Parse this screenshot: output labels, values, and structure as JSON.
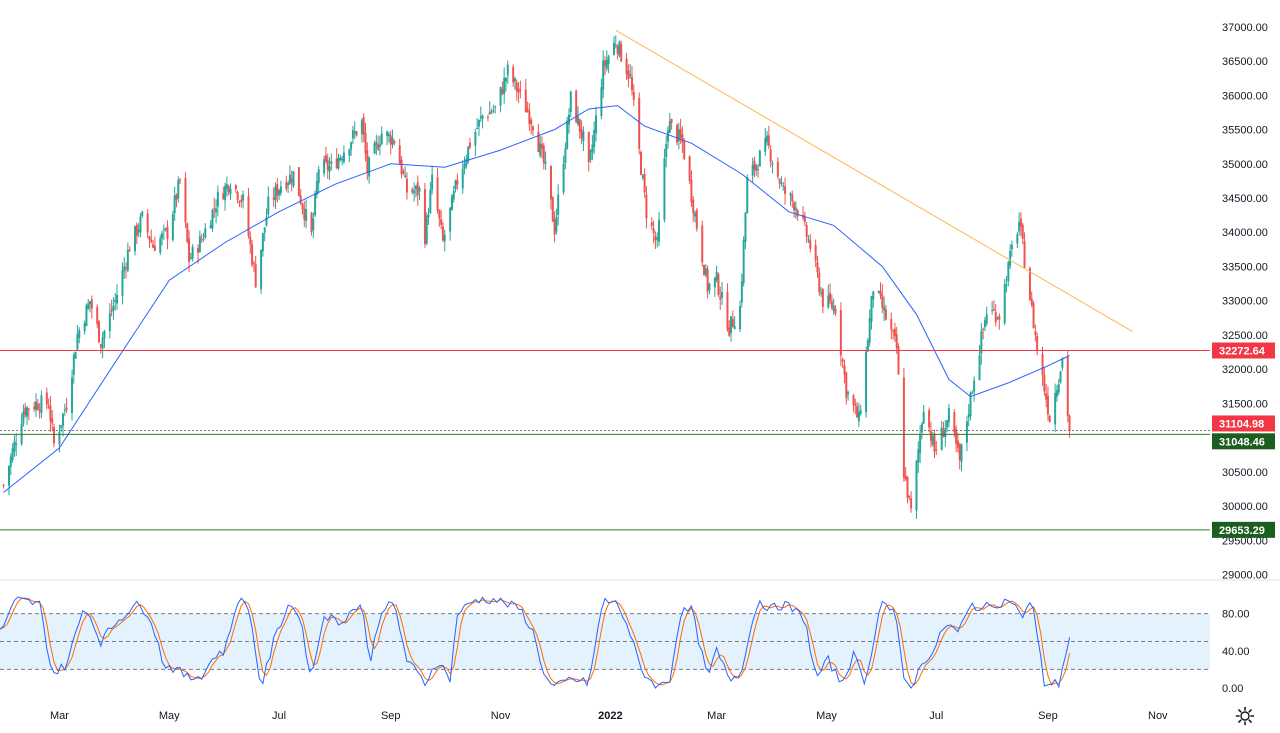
{
  "chart_data": [
    {
      "type": "candlestick",
      "price_axis": {
        "ticks": [
          "29000.00",
          "29500.00",
          "30000.00",
          "30500.00",
          "31000.00",
          "31500.00",
          "32000.00",
          "32500.00",
          "33000.00",
          "33500.00",
          "34000.00",
          "34500.00",
          "35000.00",
          "35500.00",
          "36000.00",
          "36500.00",
          "37000.00"
        ],
        "range": [
          28950,
          37100
        ]
      },
      "time_axis": {
        "labels": [
          "Mar",
          "May",
          "Jul",
          "Sep",
          "Nov",
          "2022",
          "Mar",
          "May",
          "Jul",
          "Sep",
          "Nov"
        ],
        "label_values": [
          "2021-03",
          "2021-05",
          "2021-07",
          "2021-09",
          "2021-11",
          "2022-01",
          "2022-03",
          "2022-05",
          "2022-07",
          "2022-09",
          "2022-11"
        ],
        "range": [
          "2021-01-27",
          "2022-11-30"
        ]
      },
      "anchors": [
        [
          "2021-01-29",
          30300
        ],
        [
          "2021-02-03",
          30800
        ],
        [
          "2021-02-09",
          31400
        ],
        [
          "2021-02-16",
          31500
        ],
        [
          "2021-02-23",
          31500
        ],
        [
          "2021-02-26",
          30900
        ],
        [
          "2021-03-05",
          31500
        ],
        [
          "2021-03-11",
          32500
        ],
        [
          "2021-03-18",
          33000
        ],
        [
          "2021-03-24",
          32400
        ],
        [
          "2021-04-01",
          33000
        ],
        [
          "2021-04-09",
          33800
        ],
        [
          "2021-04-16",
          34200
        ],
        [
          "2021-04-22",
          33800
        ],
        [
          "2021-04-30",
          34000
        ],
        [
          "2021-05-07",
          34750
        ],
        [
          "2021-05-12",
          33600
        ],
        [
          "2021-05-19",
          33900
        ],
        [
          "2021-05-28",
          34500
        ],
        [
          "2021-06-04",
          34750
        ],
        [
          "2021-06-11",
          34450
        ],
        [
          "2021-06-18",
          33300
        ],
        [
          "2021-06-25",
          34400
        ],
        [
          "2021-07-02",
          34700
        ],
        [
          "2021-07-09",
          34850
        ],
        [
          "2021-07-19",
          33950
        ],
        [
          "2021-07-23",
          34950
        ],
        [
          "2021-07-30",
          34950
        ],
        [
          "2021-08-06",
          35200
        ],
        [
          "2021-08-16",
          35600
        ],
        [
          "2021-08-19",
          34900
        ],
        [
          "2021-08-27",
          35450
        ],
        [
          "2021-09-03",
          35350
        ],
        [
          "2021-09-10",
          34600
        ],
        [
          "2021-09-17",
          34600
        ],
        [
          "2021-09-20",
          33950
        ],
        [
          "2021-09-24",
          34750
        ],
        [
          "2021-09-30",
          33850
        ],
        [
          "2021-10-08",
          34750
        ],
        [
          "2021-10-15",
          35300
        ],
        [
          "2021-10-22",
          35700
        ],
        [
          "2021-10-29",
          35800
        ],
        [
          "2021-11-05",
          36350
        ],
        [
          "2021-11-10",
          36100
        ],
        [
          "2021-11-19",
          35600
        ],
        [
          "2021-11-26",
          34900
        ],
        [
          "2021-12-01",
          34050
        ],
        [
          "2021-12-10",
          35950
        ],
        [
          "2021-12-17",
          35350
        ],
        [
          "2021-12-20",
          34900
        ],
        [
          "2021-12-28",
          36400
        ],
        [
          "2022-01-04",
          36800
        ],
        [
          "2022-01-12",
          36250
        ],
        [
          "2022-01-21",
          34300
        ],
        [
          "2022-01-27",
          33800
        ],
        [
          "2022-02-02",
          35600
        ],
        [
          "2022-02-10",
          35300
        ],
        [
          "2022-02-18",
          34100
        ],
        [
          "2022-02-24",
          33200
        ],
        [
          "2022-03-01",
          33300
        ],
        [
          "2022-03-08",
          32600
        ],
        [
          "2022-03-14",
          32900
        ],
        [
          "2022-03-18",
          34750
        ],
        [
          "2022-03-29",
          35300
        ],
        [
          "2022-04-07",
          34600
        ],
        [
          "2022-04-14",
          34400
        ],
        [
          "2022-04-22",
          33800
        ],
        [
          "2022-04-29",
          33000
        ],
        [
          "2022-05-06",
          32900
        ],
        [
          "2022-05-12",
          31700
        ],
        [
          "2022-05-19",
          31250
        ],
        [
          "2022-05-27",
          33200
        ],
        [
          "2022-06-01",
          32900
        ],
        [
          "2022-06-09",
          32300
        ],
        [
          "2022-06-13",
          30500
        ],
        [
          "2022-06-17",
          29900
        ],
        [
          "2022-06-24",
          31500
        ],
        [
          "2022-06-30",
          30800
        ],
        [
          "2022-07-08",
          31300
        ],
        [
          "2022-07-14",
          30650
        ],
        [
          "2022-07-22",
          31900
        ],
        [
          "2022-07-29",
          32850
        ],
        [
          "2022-08-05",
          32800
        ],
        [
          "2022-08-12",
          33750
        ],
        [
          "2022-08-16",
          34150
        ],
        [
          "2022-08-22",
          33050
        ],
        [
          "2022-08-26",
          32300
        ],
        [
          "2022-09-02",
          31300
        ],
        [
          "2022-09-09",
          32150
        ],
        [
          "2022-09-13",
          31100
        ]
      ],
      "moving_average": [
        [
          "2021-01-29",
          30200
        ],
        [
          "2021-03-01",
          30850
        ],
        [
          "2021-04-01",
          32100
        ],
        [
          "2021-05-01",
          33300
        ],
        [
          "2021-06-01",
          33850
        ],
        [
          "2021-07-01",
          34300
        ],
        [
          "2021-08-01",
          34700
        ],
        [
          "2021-09-01",
          35000
        ],
        [
          "2021-10-01",
          34950
        ],
        [
          "2021-11-01",
          35200
        ],
        [
          "2021-12-01",
          35500
        ],
        [
          "2021-12-20",
          35800
        ],
        [
          "2022-01-05",
          35850
        ],
        [
          "2022-01-20",
          35550
        ],
        [
          "2022-02-15",
          35300
        ],
        [
          "2022-03-15",
          34850
        ],
        [
          "2022-04-10",
          34300
        ],
        [
          "2022-05-05",
          34100
        ],
        [
          "2022-06-01",
          33500
        ],
        [
          "2022-06-20",
          32800
        ],
        [
          "2022-07-08",
          31850
        ],
        [
          "2022-07-20",
          31600
        ],
        [
          "2022-08-10",
          31800
        ],
        [
          "2022-09-01",
          32050
        ],
        [
          "2022-09-13",
          32200
        ]
      ],
      "trendline": [
        [
          "2022-01-04",
          36950
        ],
        [
          "2022-10-18",
          32550
        ]
      ],
      "horizontal_levels": [
        {
          "value": 32272.64,
          "label": "32272.64",
          "style": "solid",
          "color": "#f23645",
          "label_color": "#f23645"
        },
        {
          "value": 31104.98,
          "label": "31104.98",
          "style": "dotted",
          "color": "#787b86",
          "label_color": "#f23645"
        },
        {
          "value": 31048.46,
          "label": "31048.46",
          "style": "solid",
          "color": "#2e7d32",
          "label_color": "#1b5e20"
        },
        {
          "value": 29653.29,
          "label": "29653.29",
          "style": "solid",
          "color": "#2e7d32",
          "label_color": "#1b5e20"
        }
      ],
      "colors": {
        "up": "#26a69a",
        "down": "#ef5350",
        "ma": "#2962ff",
        "trend": "#ffb74d"
      }
    },
    {
      "type": "line",
      "indicator": "stochastic",
      "y_axis": {
        "ticks": [
          "0.00",
          "40.00",
          "80.00"
        ],
        "range": [
          0,
          100
        ],
        "band": [
          20,
          80
        ]
      },
      "k_anchors": [
        [
          "2021-01-27",
          60
        ],
        [
          "2021-02-05",
          95
        ],
        [
          "2021-02-18",
          90
        ],
        [
          "2021-02-25",
          15
        ],
        [
          "2021-03-05",
          25
        ],
        [
          "2021-03-15",
          90
        ],
        [
          "2021-03-24",
          50
        ],
        [
          "2021-04-01",
          70
        ],
        [
          "2021-04-12",
          90
        ],
        [
          "2021-04-20",
          80
        ],
        [
          "2021-04-28",
          25
        ],
        [
          "2021-05-05",
          20
        ],
        [
          "2021-05-12",
          10
        ],
        [
          "2021-05-20",
          15
        ],
        [
          "2021-05-26",
          35
        ],
        [
          "2021-06-01",
          40
        ],
        [
          "2021-06-08",
          95
        ],
        [
          "2021-06-14",
          88
        ],
        [
          "2021-06-21",
          0
        ],
        [
          "2021-06-28",
          50
        ],
        [
          "2021-07-06",
          90
        ],
        [
          "2021-07-12",
          80
        ],
        [
          "2021-07-19",
          10
        ],
        [
          "2021-07-26",
          80
        ],
        [
          "2021-08-03",
          70
        ],
        [
          "2021-08-16",
          92
        ],
        [
          "2021-08-20",
          25
        ],
        [
          "2021-08-27",
          85
        ],
        [
          "2021-09-03",
          90
        ],
        [
          "2021-09-10",
          30
        ],
        [
          "2021-09-20",
          5
        ],
        [
          "2021-09-27",
          30
        ],
        [
          "2021-10-04",
          10
        ],
        [
          "2021-10-08",
          80
        ],
        [
          "2021-10-18",
          95
        ],
        [
          "2021-10-29",
          95
        ],
        [
          "2021-11-05",
          90
        ],
        [
          "2021-11-12",
          85
        ],
        [
          "2021-11-19",
          60
        ],
        [
          "2021-11-26",
          10
        ],
        [
          "2021-12-01",
          0
        ],
        [
          "2021-12-10",
          10
        ],
        [
          "2021-12-20",
          5
        ],
        [
          "2021-12-28",
          95
        ],
        [
          "2022-01-05",
          90
        ],
        [
          "2022-01-10",
          70
        ],
        [
          "2022-01-18",
          20
        ],
        [
          "2022-01-27",
          0
        ],
        [
          "2022-02-03",
          10
        ],
        [
          "2022-02-09",
          80
        ],
        [
          "2022-02-15",
          85
        ],
        [
          "2022-02-24",
          10
        ],
        [
          "2022-03-01",
          40
        ],
        [
          "2022-03-08",
          10
        ],
        [
          "2022-03-14",
          15
        ],
        [
          "2022-03-24",
          95
        ],
        [
          "2022-03-31",
          85
        ],
        [
          "2022-04-08",
          90
        ],
        [
          "2022-04-19",
          75
        ],
        [
          "2022-04-25",
          10
        ],
        [
          "2022-05-02",
          30
        ],
        [
          "2022-05-09",
          5
        ],
        [
          "2022-05-16",
          35
        ],
        [
          "2022-05-23",
          5
        ],
        [
          "2022-05-31",
          95
        ],
        [
          "2022-06-08",
          80
        ],
        [
          "2022-06-13",
          10
        ],
        [
          "2022-06-17",
          0
        ],
        [
          "2022-06-24",
          30
        ],
        [
          "2022-06-30",
          40
        ],
        [
          "2022-07-06",
          70
        ],
        [
          "2022-07-13",
          60
        ],
        [
          "2022-07-21",
          90
        ],
        [
          "2022-07-26",
          85
        ],
        [
          "2022-08-02",
          90
        ],
        [
          "2022-08-12",
          95
        ],
        [
          "2022-08-17",
          75
        ],
        [
          "2022-08-23",
          95
        ],
        [
          "2022-08-30",
          5
        ],
        [
          "2022-09-07",
          5
        ],
        [
          "2022-09-13",
          55
        ]
      ],
      "colors": {
        "k": "#2962ff",
        "d": "#ff6d00",
        "band": "#e3f2fd"
      }
    }
  ]
}
